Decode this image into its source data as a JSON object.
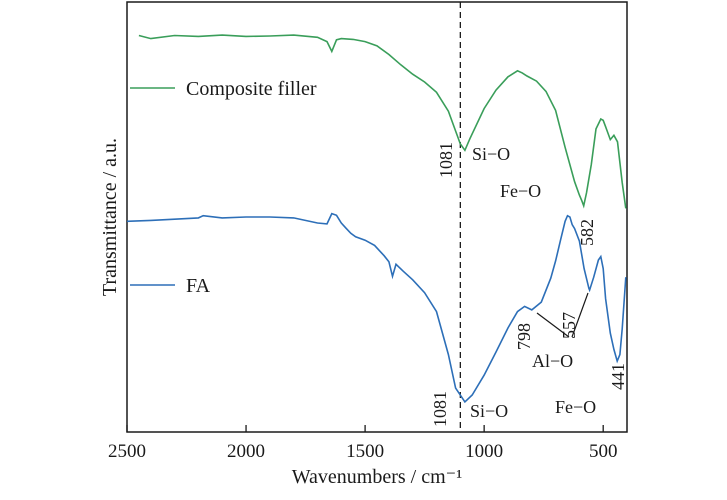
{
  "chart_data": {
    "type": "line",
    "xlabel": "Wavenumbers / cm⁻¹",
    "ylabel": "Transmittance / a.u.",
    "xlim": [
      2500,
      400
    ],
    "x_reversed": true,
    "ylim": [
      0,
      100
    ],
    "xticks": [
      2500,
      2000,
      1500,
      1000,
      500
    ],
    "grid": false,
    "legend": "inline",
    "reference_line": {
      "x": 1100,
      "style": "dashed"
    },
    "series": [
      {
        "name": "Composite filler",
        "color": "#3a9e5a",
        "x": [
          2450,
          2400,
          2300,
          2200,
          2100,
          2000,
          1900,
          1800,
          1700,
          1660,
          1640,
          1620,
          1600,
          1550,
          1500,
          1450,
          1400,
          1350,
          1300,
          1250,
          1200,
          1150,
          1120,
          1100,
          1081,
          1060,
          1000,
          950,
          900,
          860,
          840,
          820,
          780,
          740,
          700,
          660,
          620,
          600,
          590,
          582,
          570,
          550,
          530,
          510,
          500,
          490,
          470,
          455,
          440,
          420,
          405
        ],
        "values": [
          92.2,
          91.5,
          92.2,
          92.0,
          92.3,
          92.0,
          92.1,
          92.3,
          91.8,
          90.8,
          88.5,
          91.2,
          91.5,
          91.3,
          90.8,
          89.8,
          87.8,
          85.4,
          83.2,
          81.4,
          79.0,
          74.6,
          70.0,
          67.0,
          65.5,
          68.2,
          75.2,
          79.5,
          82.6,
          84.0,
          83.5,
          82.8,
          81.6,
          79.2,
          74.8,
          66.2,
          58.2,
          55.1,
          53.8,
          52.6,
          55.6,
          62.2,
          70.5,
          72.8,
          72.5,
          71.0,
          68.0,
          69.0,
          67.5,
          58.0,
          52.0
        ]
      },
      {
        "name": "FA",
        "color": "#2d6fb8",
        "x": [
          2500,
          2400,
          2300,
          2200,
          2180,
          2100,
          2000,
          1900,
          1800,
          1700,
          1660,
          1640,
          1620,
          1600,
          1580,
          1560,
          1540,
          1500,
          1460,
          1420,
          1400,
          1385,
          1370,
          1340,
          1300,
          1250,
          1200,
          1150,
          1120,
          1081,
          1050,
          1000,
          950,
          900,
          860,
          830,
          800,
          760,
          720,
          700,
          680,
          660,
          650,
          640,
          630,
          620,
          600,
          580,
          560,
          557,
          540,
          520,
          510,
          500,
          490,
          470,
          455,
          441,
          430,
          420,
          405
        ],
        "values": [
          49.0,
          49.2,
          49.5,
          49.8,
          50.3,
          49.8,
          50.0,
          50.0,
          49.8,
          48.6,
          48.4,
          50.8,
          50.4,
          48.6,
          47.4,
          46.2,
          45.4,
          44.6,
          43.4,
          41.0,
          39.6,
          36.2,
          39.0,
          37.4,
          35.4,
          32.4,
          28.0,
          18.0,
          10.2,
          7.0,
          8.6,
          13.2,
          18.6,
          24.2,
          28.0,
          29.2,
          28.4,
          30.2,
          35.8,
          39.8,
          44.4,
          49.0,
          50.3,
          50.0,
          48.2,
          47.3,
          44.4,
          38.0,
          33.4,
          33.0,
          36.0,
          40.0,
          40.8,
          38.0,
          31.0,
          23.0,
          19.2,
          16.5,
          18.0,
          24.0,
          36.0
        ]
      }
    ],
    "annotations": [
      {
        "text": "1081",
        "x": 1081
      },
      {
        "text": "Si−O",
        "x": 1000
      },
      {
        "text": "Fe−O",
        "x": 640
      },
      {
        "text": "582",
        "x": 582
      },
      {
        "text": "1081",
        "x": 1081
      },
      {
        "text": "Si−O",
        "x": 1000
      },
      {
        "text": "798",
        "x": 798
      },
      {
        "text": "557",
        "x": 557
      },
      {
        "text": "Al−O",
        "x": 720
      },
      {
        "text": "Fe−O",
        "x": 560
      },
      {
        "text": "441",
        "x": 441
      }
    ]
  }
}
